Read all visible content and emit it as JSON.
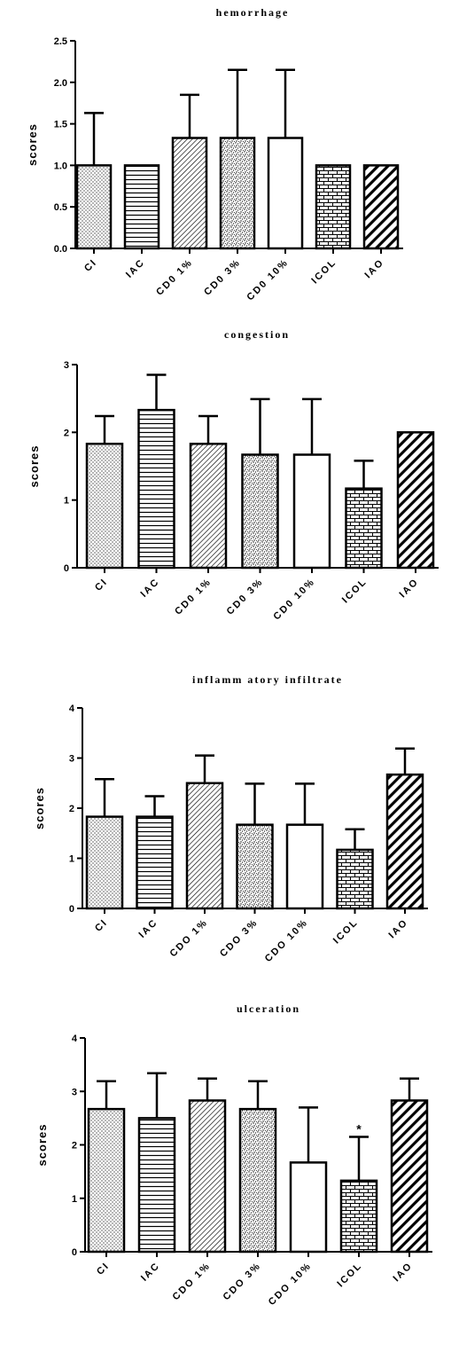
{
  "chart_data": [
    {
      "type": "bar",
      "title": "hemorrhage",
      "ylabel": "scores",
      "xlabel": "",
      "ylim": [
        0,
        2.5
      ],
      "yticks": [
        "0.0",
        "0.5",
        "1.0",
        "1.5",
        "2.0",
        "2.5"
      ],
      "categories": [
        "CI",
        "IAC",
        "CD0 1%",
        "CD0 3%",
        "CD0 10%",
        "ICOL",
        "IAO"
      ],
      "values": [
        1.0,
        1.0,
        1.33,
        1.33,
        1.33,
        1.0,
        1.0
      ],
      "error_upper": [
        0.63,
        0.0,
        0.52,
        0.82,
        0.82,
        0.0,
        0.0
      ],
      "annotations": [
        "",
        "",
        "",
        "",
        "",
        "",
        ""
      ],
      "grid": false,
      "legend": "none"
    },
    {
      "type": "bar",
      "title": "congestion",
      "ylabel": "scores",
      "xlabel": "",
      "ylim": [
        0,
        3
      ],
      "yticks": [
        "0",
        "1",
        "2",
        "3"
      ],
      "categories": [
        "CI",
        "IAC",
        "CD0 1%",
        "CD0 3%",
        "CD0 10%",
        "ICOL",
        "IAO"
      ],
      "values": [
        1.83,
        2.33,
        1.83,
        1.67,
        1.67,
        1.17,
        2.0
      ],
      "error_upper": [
        0.41,
        0.52,
        0.41,
        0.82,
        0.82,
        0.41,
        0.0
      ],
      "annotations": [
        "",
        "",
        "",
        "",
        "",
        "",
        ""
      ],
      "grid": false,
      "legend": "none"
    },
    {
      "type": "bar",
      "title": "inflamm atory infiltrate",
      "ylabel": "scores",
      "xlabel": "",
      "ylim": [
        0,
        4
      ],
      "yticks": [
        "0",
        "1",
        "2",
        "3",
        "4"
      ],
      "categories": [
        "CI",
        "IAC",
        "CDO 1%",
        "CDO 3%",
        "CDO 10%",
        "ICOL",
        "IAO"
      ],
      "values": [
        1.83,
        1.83,
        2.5,
        1.67,
        1.67,
        1.17,
        2.67
      ],
      "error_upper": [
        0.75,
        0.41,
        0.55,
        0.82,
        0.82,
        0.41,
        0.52
      ],
      "annotations": [
        "",
        "",
        "",
        "",
        "",
        "",
        ""
      ],
      "grid": false,
      "legend": "none"
    },
    {
      "type": "bar",
      "title": "ulceration",
      "ylabel": "scores",
      "xlabel": "",
      "ylim": [
        0,
        4
      ],
      "yticks": [
        "0",
        "1",
        "2",
        "3",
        "4"
      ],
      "categories": [
        "CI",
        "IAC",
        "CDO 1%",
        "CDO 3%",
        "CDO 10%",
        "ICOL",
        "IAO"
      ],
      "values": [
        2.67,
        2.5,
        2.83,
        2.67,
        1.67,
        1.33,
        2.83
      ],
      "error_upper": [
        0.52,
        0.84,
        0.41,
        0.52,
        1.03,
        0.82,
        0.41
      ],
      "annotations": [
        "",
        "",
        "",
        "",
        "",
        "*",
        ""
      ],
      "grid": false,
      "legend": "none"
    }
  ],
  "patterns": [
    "dots",
    "hlines",
    "diag-fine",
    "speckle",
    "blank",
    "brick",
    "diag-bold"
  ],
  "colors": {
    "ink": "#000000",
    "background": "#ffffff"
  }
}
